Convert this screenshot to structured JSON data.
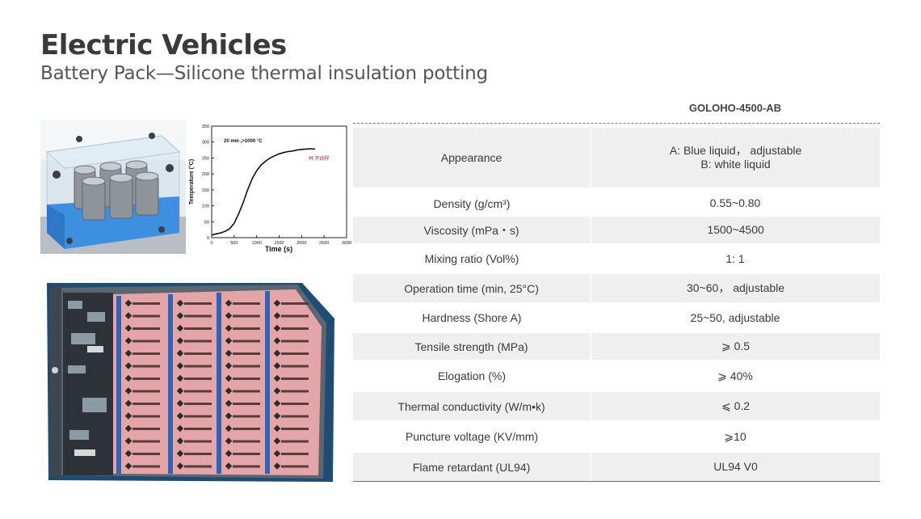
{
  "header": {
    "title": "Electric Vehicles",
    "subtitle": "Battery Pack—Silicone thermal insulation potting"
  },
  "chart_data": {
    "type": "line",
    "annotation": "20 mm ,>1000 °C",
    "legend_label": "林 开线样",
    "xlabel": "Time (s)",
    "ylabel": "Temperature (°C)",
    "xlim": [
      0,
      3000
    ],
    "ylim": [
      0,
      350
    ],
    "x_ticks": [
      "0",
      "500",
      "1000",
      "1500",
      "2000",
      "2500",
      "3000"
    ],
    "y_ticks": [
      "0",
      "50",
      "100",
      "150",
      "200",
      "250",
      "300",
      "350"
    ],
    "series": [
      {
        "x": [
          0,
          100,
          200,
          300,
          400,
          500,
          600,
          700,
          800,
          900,
          1000,
          1100,
          1200,
          1300,
          1400,
          1500,
          1600,
          1700,
          1800,
          1900,
          2000,
          2100,
          2200,
          2300
        ],
        "y": [
          8,
          12,
          15,
          20,
          28,
          45,
          75,
          110,
          150,
          185,
          210,
          228,
          240,
          250,
          257,
          263,
          267,
          270,
          272,
          275,
          277,
          278,
          279,
          278
        ]
      }
    ]
  },
  "table": {
    "product": "GOLOHO-4500-AB",
    "rows": [
      {
        "prop": "Appearance",
        "val1": "A: Blue liquid， adjustable",
        "val2": "B: white liquid",
        "shaded": true
      },
      {
        "prop": "Density (g/cm³)",
        "val1": "0.55~0.80",
        "val2": "",
        "shaded": false
      },
      {
        "prop": "Viscosity (mPa・s)",
        "val1": "1500~4500",
        "val2": "",
        "shaded": true
      },
      {
        "prop": "Mixing ratio (Vol%)",
        "val1": "1: 1",
        "val2": "",
        "shaded": false
      },
      {
        "prop": "Operation time (min, 25°C)",
        "val1": "30~60， adjustable",
        "val2": "",
        "shaded": true
      },
      {
        "prop": "Hardness (Shore A)",
        "val1": "25~50, adjustable",
        "val2": "",
        "shaded": false
      },
      {
        "prop": "Tensile strength (MPa)",
        "val1": "⩾ 0.5",
        "val2": "",
        "shaded": true
      },
      {
        "prop": "Elogation (%)",
        "val1": "⩾ 40%",
        "val2": "",
        "shaded": false
      },
      {
        "prop": "Thermal conductivity (W/m•k)",
        "val1": "⩽ 0.2",
        "val2": "",
        "shaded": true
      },
      {
        "prop": "Puncture voltage (KV/mm)",
        "val1": "⩾10",
        "val2": "",
        "shaded": false
      },
      {
        "prop": "Flame retardant (UL94)",
        "val1": "UL94  V0",
        "val2": "",
        "shaded": true
      }
    ]
  }
}
